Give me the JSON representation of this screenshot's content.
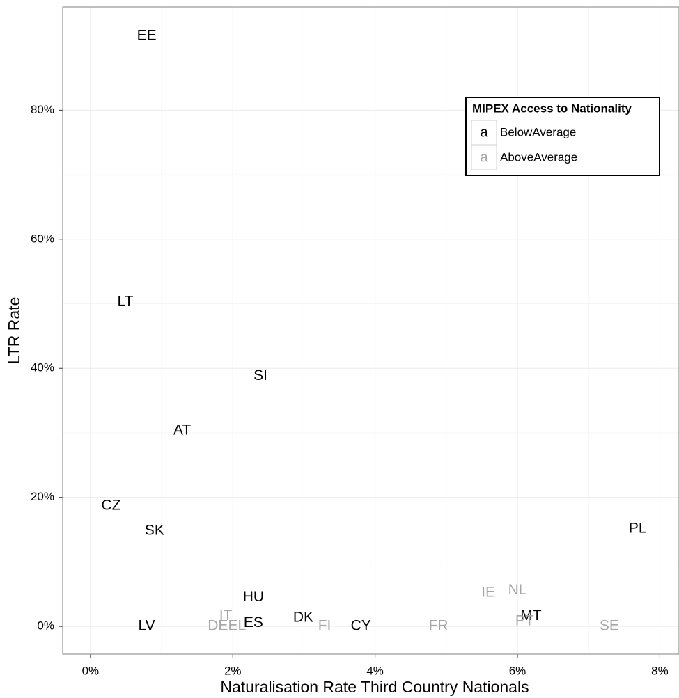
{
  "chart_data": {
    "type": "scatter",
    "x_label": "Naturalisation Rate Third Country Nationals",
    "y_label": "LTR Rate",
    "xlim": [
      -0.39,
      8.27
    ],
    "ylim": [
      -4.3,
      96.0
    ],
    "xticks": [
      {
        "value": 0,
        "label": "0%"
      },
      {
        "value": 2,
        "label": "2%"
      },
      {
        "value": 4,
        "label": "4%"
      },
      {
        "value": 6,
        "label": "6%"
      },
      {
        "value": 8,
        "label": "8%"
      }
    ],
    "yticks": [
      {
        "value": 0,
        "label": "0%"
      },
      {
        "value": 20,
        "label": "20%"
      },
      {
        "value": 40,
        "label": "40%"
      },
      {
        "value": 60,
        "label": "60%"
      },
      {
        "value": 80,
        "label": "80%"
      }
    ],
    "grid": true,
    "legend": {
      "title": "MIPEX Access to Nationality",
      "symbol": "a",
      "position": "top-right"
    },
    "series": [
      {
        "name": "BelowAverage",
        "color": "#000000",
        "labels": [
          "EE",
          "LT",
          "SI",
          "AT",
          "CZ",
          "SK",
          "PL",
          "HU",
          "LV",
          "ES",
          "DK",
          "CY",
          "MT"
        ],
        "x": [
          0.79,
          0.49,
          2.39,
          1.29,
          0.29,
          0.9,
          7.69,
          2.29,
          0.79,
          2.29,
          2.99,
          3.8,
          6.19
        ],
        "y": [
          91.5,
          50.3,
          38.8,
          30.3,
          18.7,
          14.8,
          15.1,
          4.5,
          0,
          0.5,
          1.3,
          0,
          1.6
        ]
      },
      {
        "name": "AboveAverage",
        "color": "#a6a6a6",
        "labels": [
          "IT",
          "DE",
          "EL",
          "FI",
          "FR",
          "IE",
          "NL",
          "PT",
          "SE"
        ],
        "x": [
          1.9,
          1.79,
          2.06,
          3.29,
          4.89,
          5.59,
          6.0,
          6.1,
          7.29
        ],
        "y": [
          1.6,
          0,
          0,
          0,
          0,
          5.2,
          5.6,
          0.8,
          0
        ]
      }
    ]
  }
}
